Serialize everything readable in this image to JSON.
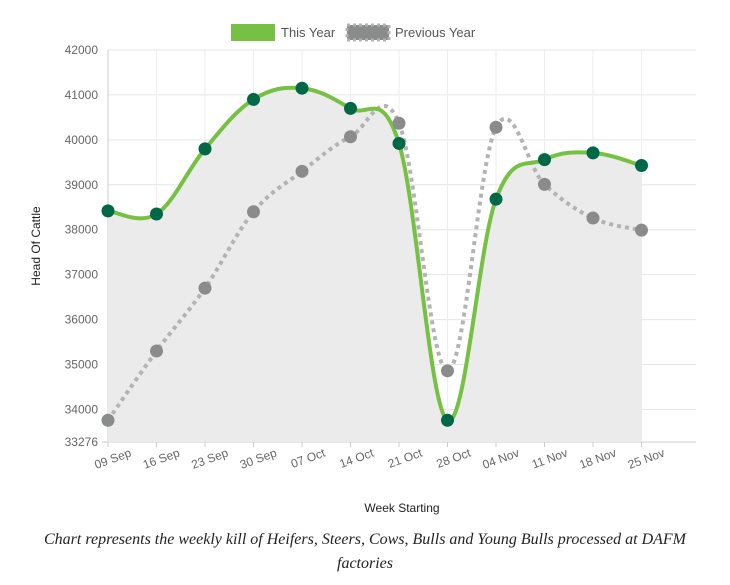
{
  "chart_data": {
    "type": "line",
    "categories": [
      "09 Sep",
      "16 Sep",
      "23 Sep",
      "30 Sep",
      "07 Oct",
      "14 Oct",
      "21 Oct",
      "28 Oct",
      "04 Nov",
      "11 Nov",
      "18 Nov",
      "25 Nov"
    ],
    "series": [
      {
        "name": "This Year",
        "color": "#76c043",
        "marker_color": "#006747",
        "style": "solid",
        "fill": "#ebebeb",
        "values": [
          38420,
          38350,
          39800,
          40900,
          41150,
          40700,
          39920,
          33760,
          38680,
          39560,
          39710,
          39430
        ]
      },
      {
        "name": "Previous Year",
        "color": "#b3b3b3",
        "marker_color": "#8a8c8b",
        "style": "dotted",
        "values": [
          33760,
          35300,
          36700,
          38400,
          39300,
          40070,
          40370,
          34860,
          40280,
          39010,
          38260,
          37990
        ]
      }
    ],
    "xlabel": "Week Starting",
    "ylabel": "Head Of Cattle",
    "ylim": [
      33276,
      42000
    ],
    "yticks": [
      33276,
      34000,
      35000,
      36000,
      37000,
      38000,
      39000,
      40000,
      41000,
      42000
    ],
    "grid": true,
    "legend": "top-center"
  },
  "caption": "Chart represents the weekly kill of Heifers, Steers, Cows, Bulls and Young Bulls processed at DAFM factories"
}
